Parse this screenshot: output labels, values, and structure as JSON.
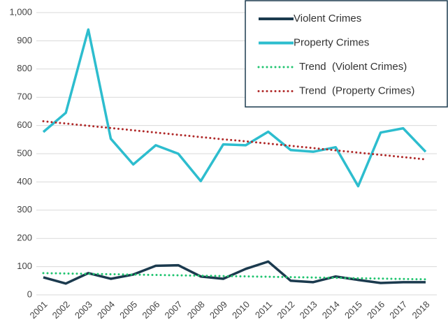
{
  "chart_data": {
    "type": "line",
    "x": [
      "2001",
      "2002",
      "2003",
      "2004",
      "2005",
      "2006",
      "2007",
      "2008",
      "2009",
      "2010",
      "2011",
      "2012",
      "2013",
      "2014",
      "2015",
      "2016",
      "2017",
      "2018"
    ],
    "series": [
      {
        "name": "Violent Crimes",
        "color": "#1b3a4e",
        "style": "solid",
        "values": [
          62,
          40,
          77,
          57,
          72,
          103,
          105,
          65,
          57,
          92,
          118,
          50,
          45,
          65,
          53,
          42,
          45,
          45
        ]
      },
      {
        "name": "Property Crimes",
        "color": "#2dbdce",
        "style": "solid",
        "values": [
          577,
          645,
          940,
          553,
          462,
          530,
          500,
          403,
          533,
          530,
          578,
          513,
          507,
          523,
          385,
          575,
          590,
          507
        ]
      },
      {
        "name": "Trend  (Violent Crimes)",
        "color": "#1fc46f",
        "style": "dotted",
        "values": [
          77,
          75.7,
          74.4,
          73.1,
          71.8,
          70.5,
          69.2,
          67.9,
          66.6,
          65.4,
          64.1,
          62.8,
          61.5,
          60.2,
          58.9,
          57.6,
          56.3,
          55
        ]
      },
      {
        "name": "Trend  (Property Crimes)",
        "color": "#b02a2a",
        "style": "dotted",
        "values": [
          615,
          607,
          599,
          591,
          583,
          575,
          567,
          559,
          551,
          544,
          536,
          528,
          520,
          512,
          504,
          496,
          488,
          480
        ]
      }
    ],
    "ylim": [
      0,
      1000
    ],
    "yticks": [
      0,
      100,
      200,
      300,
      400,
      500,
      600,
      700,
      800,
      900,
      {
        "value": 1000,
        "label": "1,000"
      }
    ],
    "grid": true,
    "legend": "top-right"
  }
}
